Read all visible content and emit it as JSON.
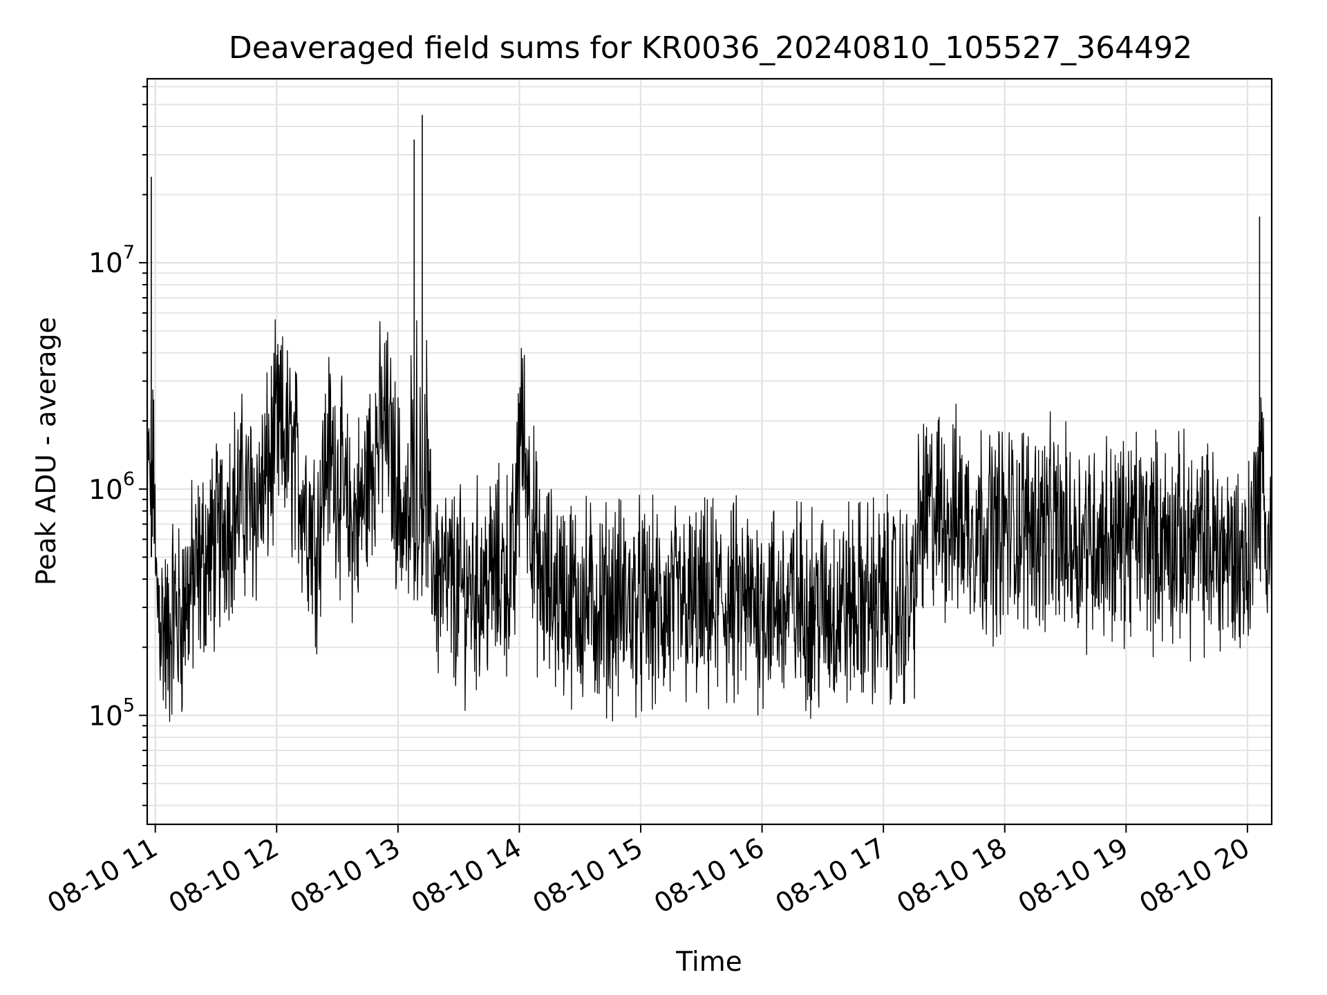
{
  "chart_data": {
    "type": "line",
    "title": "Deaveraged field sums for KR0036_20240810_105527_364492",
    "xlabel": "Time",
    "ylabel": "Peak ADU - average",
    "yscale": "log",
    "ylim": [
      33000,
      65000000
    ],
    "xlim": [
      "2024-08-10 10:56",
      "2024-08-10 20:12"
    ],
    "grid": true,
    "x_ticks": [
      "08-10 11",
      "08-10 12",
      "08-10 13",
      "08-10 14",
      "08-10 15",
      "08-10 16",
      "08-10 17",
      "08-10 18",
      "08-10 19",
      "08-10 20"
    ],
    "y_ticks": [
      {
        "base": "10",
        "exp": "5",
        "value": 100000
      },
      {
        "base": "10",
        "exp": "6",
        "value": 1000000
      },
      {
        "base": "10",
        "exp": "7",
        "value": 10000000
      }
    ],
    "series": [
      {
        "color": "#000000",
        "x": [
          "2024-08-10 10:56",
          "2024-08-10 10:58",
          "2024-08-10 11:00",
          "2024-08-10 11:03",
          "2024-08-10 11:06",
          "2024-08-10 11:09",
          "2024-08-10 11:12",
          "2024-08-10 11:15",
          "2024-08-10 11:20",
          "2024-08-10 11:25",
          "2024-08-10 11:30",
          "2024-08-10 11:36",
          "2024-08-10 11:42",
          "2024-08-10 11:48",
          "2024-08-10 11:54",
          "2024-08-10 12:00",
          "2024-08-10 12:05",
          "2024-08-10 12:10",
          "2024-08-10 12:15",
          "2024-08-10 12:20",
          "2024-08-10 12:25",
          "2024-08-10 12:30",
          "2024-08-10 12:36",
          "2024-08-10 12:42",
          "2024-08-10 12:48",
          "2024-08-10 12:54",
          "2024-08-10 12:58",
          "2024-08-10 13:02",
          "2024-08-10 13:06",
          "2024-08-10 13:08",
          "2024-08-10 13:10",
          "2024-08-10 13:12",
          "2024-08-10 13:15",
          "2024-08-10 13:20",
          "2024-08-10 13:30",
          "2024-08-10 13:40",
          "2024-08-10 13:50",
          "2024-08-10 13:58",
          "2024-08-10 14:00",
          "2024-08-10 14:10",
          "2024-08-10 14:20",
          "2024-08-10 14:30",
          "2024-08-10 14:40",
          "2024-08-10 14:50",
          "2024-08-10 15:00",
          "2024-08-10 15:10",
          "2024-08-10 15:20",
          "2024-08-10 15:30",
          "2024-08-10 15:40",
          "2024-08-10 15:50",
          "2024-08-10 16:00",
          "2024-08-10 16:10",
          "2024-08-10 16:20",
          "2024-08-10 16:30",
          "2024-08-10 16:40",
          "2024-08-10 16:50",
          "2024-08-10 17:00",
          "2024-08-10 17:10",
          "2024-08-10 17:15",
          "2024-08-10 17:18",
          "2024-08-10 17:25",
          "2024-08-10 17:35",
          "2024-08-10 17:45",
          "2024-08-10 17:55",
          "2024-08-10 18:05",
          "2024-08-10 18:15",
          "2024-08-10 18:25",
          "2024-08-10 18:35",
          "2024-08-10 18:45",
          "2024-08-10 18:55",
          "2024-08-10 19:05",
          "2024-08-10 19:15",
          "2024-08-10 19:25",
          "2024-08-10 19:35",
          "2024-08-10 19:45",
          "2024-08-10 19:55",
          "2024-08-10 20:00",
          "2024-08-10 20:03",
          "2024-08-10 20:06",
          "2024-08-10 20:09",
          "2024-08-10 20:12"
        ],
        "y": [
          500000,
          24000000,
          350000,
          280000,
          200000,
          300000,
          250000,
          330000,
          400000,
          500000,
          550000,
          800000,
          900000,
          850000,
          1000000,
          1800000,
          1600000,
          1200000,
          800000,
          600000,
          1500000,
          1200000,
          700000,
          800000,
          1500000,
          2000000,
          1200000,
          800000,
          600000,
          35000000,
          400000,
          45000000,
          600000,
          400000,
          350000,
          380000,
          420000,
          450000,
          2400000,
          380000,
          350000,
          320000,
          300000,
          320000,
          300000,
          280000,
          300000,
          290000,
          310000,
          300000,
          320000,
          300000,
          310000,
          290000,
          300000,
          310000,
          320000,
          300000,
          330000,
          700000,
          800000,
          750000,
          700000,
          650000,
          700000,
          700000,
          650000,
          600000,
          620000,
          600000,
          650000,
          600000,
          580000,
          560000,
          550000,
          500000,
          480000,
          600000,
          16000000,
          550000,
          600000
        ]
      }
    ]
  }
}
